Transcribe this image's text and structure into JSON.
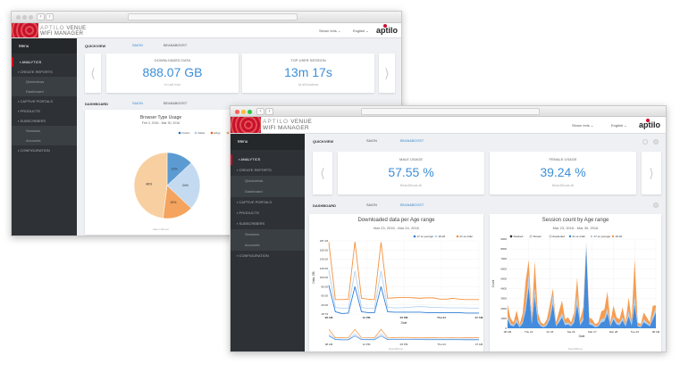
{
  "brand": {
    "line1": "APTILO",
    "line1b": "VENUE",
    "line2": "WIFI MANAGER",
    "logo": "aptilo"
  },
  "colors": {
    "accent": "#3d8fd8",
    "brand_red": "#c8102e",
    "sidebar": "#2e3236",
    "orange": "#f5923e",
    "dark_blue": "#1f6fc5",
    "light_blue": "#a9cbee"
  },
  "sidebar": {
    "menu": "Menu",
    "items": [
      {
        "label": "ANALYTICS",
        "type": "active",
        "icon": "chart-icon"
      },
      {
        "label": "CREATE REPORTS",
        "type": "main",
        "icon": "report-icon"
      },
      {
        "label": "Quickviews",
        "type": "sub"
      },
      {
        "label": "Dashboard",
        "type": "sub"
      },
      {
        "label": "CAPTIVE PORTALS",
        "type": "main",
        "icon": "wifi-icon"
      },
      {
        "label": "PRODUCTS",
        "type": "main",
        "icon": "bag-icon"
      },
      {
        "label": "SUBSCRIBERS",
        "type": "main",
        "icon": "users-icon"
      },
      {
        "label": "Sessions",
        "type": "sub"
      },
      {
        "label": "Accounts",
        "type": "sub"
      },
      {
        "label": "CONFIGURATION",
        "type": "main",
        "icon": "config-icon"
      }
    ]
  },
  "back": {
    "user": "Simon Irvis ⌄",
    "language": "English ⌄",
    "quickview": {
      "label": "QUICKVIEW",
      "tabs": [
        "SAION",
        "BEAN&BOOST"
      ],
      "active": 0
    },
    "cards": [
      {
        "title": "DOWNLOADED DATA",
        "value": "888.07 GB",
        "sub": "in Last hour"
      },
      {
        "title": "TOP USER SESSION",
        "value": "13m 17s",
        "sub": "At all locations"
      }
    ],
    "dashboard": {
      "label": "DASHBOARD",
      "tabs": [
        "SAION",
        "BEAN&BOOST"
      ]
    },
    "pie": {
      "type": "pie",
      "title": "Browser Type Usage",
      "subtitle": "Feb 3, 2016 - Mar 30, 2016",
      "footer": "Saion Telenor",
      "slices": [
        {
          "name": "Firefox",
          "value": 13,
          "label": "13%",
          "color": "#5b9bd1"
        },
        {
          "name": "Safari",
          "value": 24,
          "label": "24%",
          "color": "#c4daf1"
        },
        {
          "name": "Edge",
          "value": 15,
          "label": "15%",
          "color": "#f4a45e"
        },
        {
          "name": "Chrome",
          "value": 48,
          "label": "48%",
          "color": "#f8cfa0"
        }
      ],
      "legend_colors": [
        "#1f6fc5",
        "#a9cbee",
        "#e8650f",
        "#f5a85c"
      ]
    }
  },
  "front": {
    "user": "Simon Irvis ⌄",
    "language": "English ⌄",
    "quickview": {
      "label": "QUICKVIEW",
      "tabs": [
        "SAION",
        "BEAN&BOOST"
      ],
      "active": 1
    },
    "cards": [
      {
        "title": "MALE USAGE",
        "value": "57.55 %",
        "sub": "Bean&Boost all"
      },
      {
        "title": "FEMALE USAGE",
        "value": "39.24 %",
        "sub": "Bean&Boost all"
      }
    ],
    "dashboard": {
      "label": "DASHBOARD",
      "tabs": [
        "SAION",
        "BEAN&BOOST"
      ]
    }
  },
  "chart_data": [
    {
      "type": "line",
      "title": "Downloaded data per Age range",
      "subtitle": "Mar 23, 2016 - Mar 24, 2016",
      "xlabel": "Date",
      "ylabel": "Data, GB",
      "footer": "Bean&Boost",
      "ylim": [
        18.79,
        187.18
      ],
      "yticks": [
        "18.79",
        "40.00",
        "60.00",
        "80.00",
        "100.00",
        "120.00",
        "140.00",
        "160.00",
        "187.18"
      ],
      "xticks": [
        "08 AM",
        "12 PM",
        "06 PM",
        "Thu 24",
        "07 AM"
      ],
      "legend": "top-right",
      "grid": true,
      "series": [
        {
          "name": "17-or-younger",
          "color": "#2f7ed8",
          "values": [
            85,
            24,
            20,
            21,
            82,
            24,
            22,
            22,
            82,
            24,
            23,
            23,
            23,
            23,
            23,
            22,
            22,
            22,
            22,
            22,
            22,
            21,
            21,
            21
          ]
        },
        {
          "name": "18-20",
          "color": "#b5d3f2",
          "values": [
            120,
            34,
            32,
            32,
            118,
            34,
            32,
            32,
            118,
            34,
            33,
            33,
            34,
            35,
            36,
            35,
            34,
            34,
            33,
            33,
            33,
            33,
            32,
            32
          ]
        },
        {
          "name": "21-or-older",
          "color": "#f5923e",
          "values": [
            184,
            52,
            52,
            53,
            185,
            55,
            53,
            52,
            184,
            55,
            56,
            57,
            57,
            56,
            55,
            56,
            56,
            53,
            53,
            55,
            53,
            52,
            52,
            52
          ]
        }
      ]
    },
    {
      "type": "area",
      "stacked": true,
      "title": "Session count by Age range",
      "subtitle": "Mar 23, 2016 - Mar 30, 2016",
      "xlabel": "Date",
      "ylabel": "Count",
      "footer": "Bean&Boost",
      "ylim": [
        0,
        9000
      ],
      "yticks": [
        "0",
        "1000",
        "2000",
        "3000",
        "4000",
        "5000",
        "6000",
        "7000",
        "8000",
        "9000"
      ],
      "xticks": [
        "08 AM",
        "Thu 24",
        "Fri 25",
        "Sat 26",
        "Mar 27",
        "Mar 28",
        "Tue 29",
        "08 AM"
      ],
      "modes": [
        "Stacked",
        "Stream",
        "Expanded"
      ],
      "legend": "top",
      "series": [
        {
          "name": "21-or-older",
          "color": "#2f7ed8",
          "values": [
            900,
            300,
            200,
            600,
            100,
            500,
            1800,
            4200,
            400,
            3200,
            600,
            200,
            100,
            300,
            900,
            2500,
            200,
            600,
            1100,
            300,
            400,
            200,
            600,
            2400,
            300,
            800,
            8200,
            400,
            300,
            100,
            200,
            600,
            700,
            1500,
            200,
            900,
            400,
            300,
            800,
            200,
            1200,
            300,
            2400,
            200,
            100,
            600,
            400,
            200,
            900,
            1600
          ]
        },
        {
          "name": "17-or-younger",
          "color": "#a9cbee",
          "values": [
            300,
            200,
            100,
            300,
            100,
            200,
            500,
            1200,
            200,
            800,
            300,
            100,
            100,
            200,
            300,
            900,
            100,
            300,
            400,
            200,
            200,
            100,
            300,
            900,
            200,
            300,
            300,
            200,
            200,
            100,
            100,
            300,
            300,
            500,
            100,
            300,
            200,
            200,
            300,
            100,
            500,
            200,
            800,
            100,
            100,
            300,
            200,
            100,
            300,
            500
          ]
        },
        {
          "name": "18-20",
          "color": "#f5923e",
          "values": [
            1200,
            500,
            300,
            900,
            200,
            800,
            2500,
            1500,
            600,
            2800,
            700,
            300,
            200,
            400,
            1200,
            600,
            300,
            800,
            1300,
            400,
            500,
            300,
            700,
            1800,
            400,
            1000,
            200,
            500,
            400,
            200,
            300,
            800,
            900,
            1700,
            300,
            1100,
            500,
            400,
            1000,
            300,
            1400,
            400,
            3800,
            300,
            200,
            700,
            500,
            300,
            1100,
            200
          ]
        },
        {
          "name": "Stacked",
          "color": "#222"
        }
      ]
    }
  ]
}
